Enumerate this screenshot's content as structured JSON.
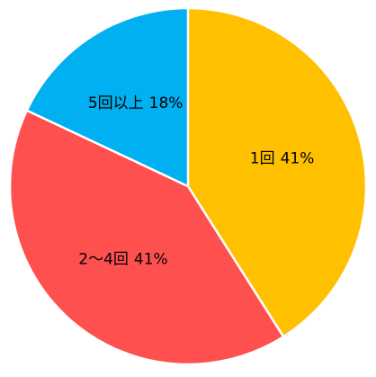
{
  "chart_data": {
    "type": "pie",
    "categories": [
      "1回",
      "2～4回",
      "5回以上"
    ],
    "values": [
      41,
      41,
      18
    ],
    "value_labels": [
      "41%",
      "41%",
      "18%"
    ],
    "colors": [
      "#FFC000",
      "#FF5050",
      "#00B0F0"
    ]
  }
}
